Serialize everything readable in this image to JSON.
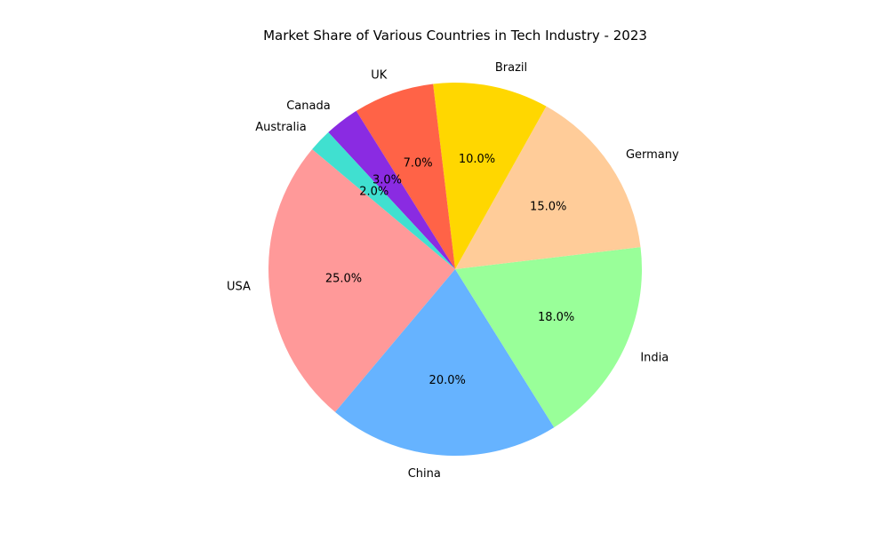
{
  "chart_data": {
    "type": "pie",
    "title": "Market Share of Various Countries in Tech Industry - 2023",
    "start_angle_deg": 140,
    "direction": "counterclockwise",
    "slices": [
      {
        "label": "USA",
        "value": 25.0,
        "pct_label": "25.0%",
        "color": "#ff9999"
      },
      {
        "label": "China",
        "value": 20.0,
        "pct_label": "20.0%",
        "color": "#66b3ff"
      },
      {
        "label": "India",
        "value": 18.0,
        "pct_label": "18.0%",
        "color": "#99ff99"
      },
      {
        "label": "Germany",
        "value": 15.0,
        "pct_label": "15.0%",
        "color": "#ffcc99"
      },
      {
        "label": "Brazil",
        "value": 10.0,
        "pct_label": "10.0%",
        "color": "#ffd700"
      },
      {
        "label": "UK",
        "value": 7.0,
        "pct_label": "7.0%",
        "color": "#ff6347"
      },
      {
        "label": "Canada",
        "value": 3.0,
        "pct_label": "3.0%",
        "color": "#8a2be2"
      },
      {
        "label": "Australia",
        "value": 2.0,
        "pct_label": "2.0%",
        "color": "#40e0d0"
      }
    ]
  }
}
